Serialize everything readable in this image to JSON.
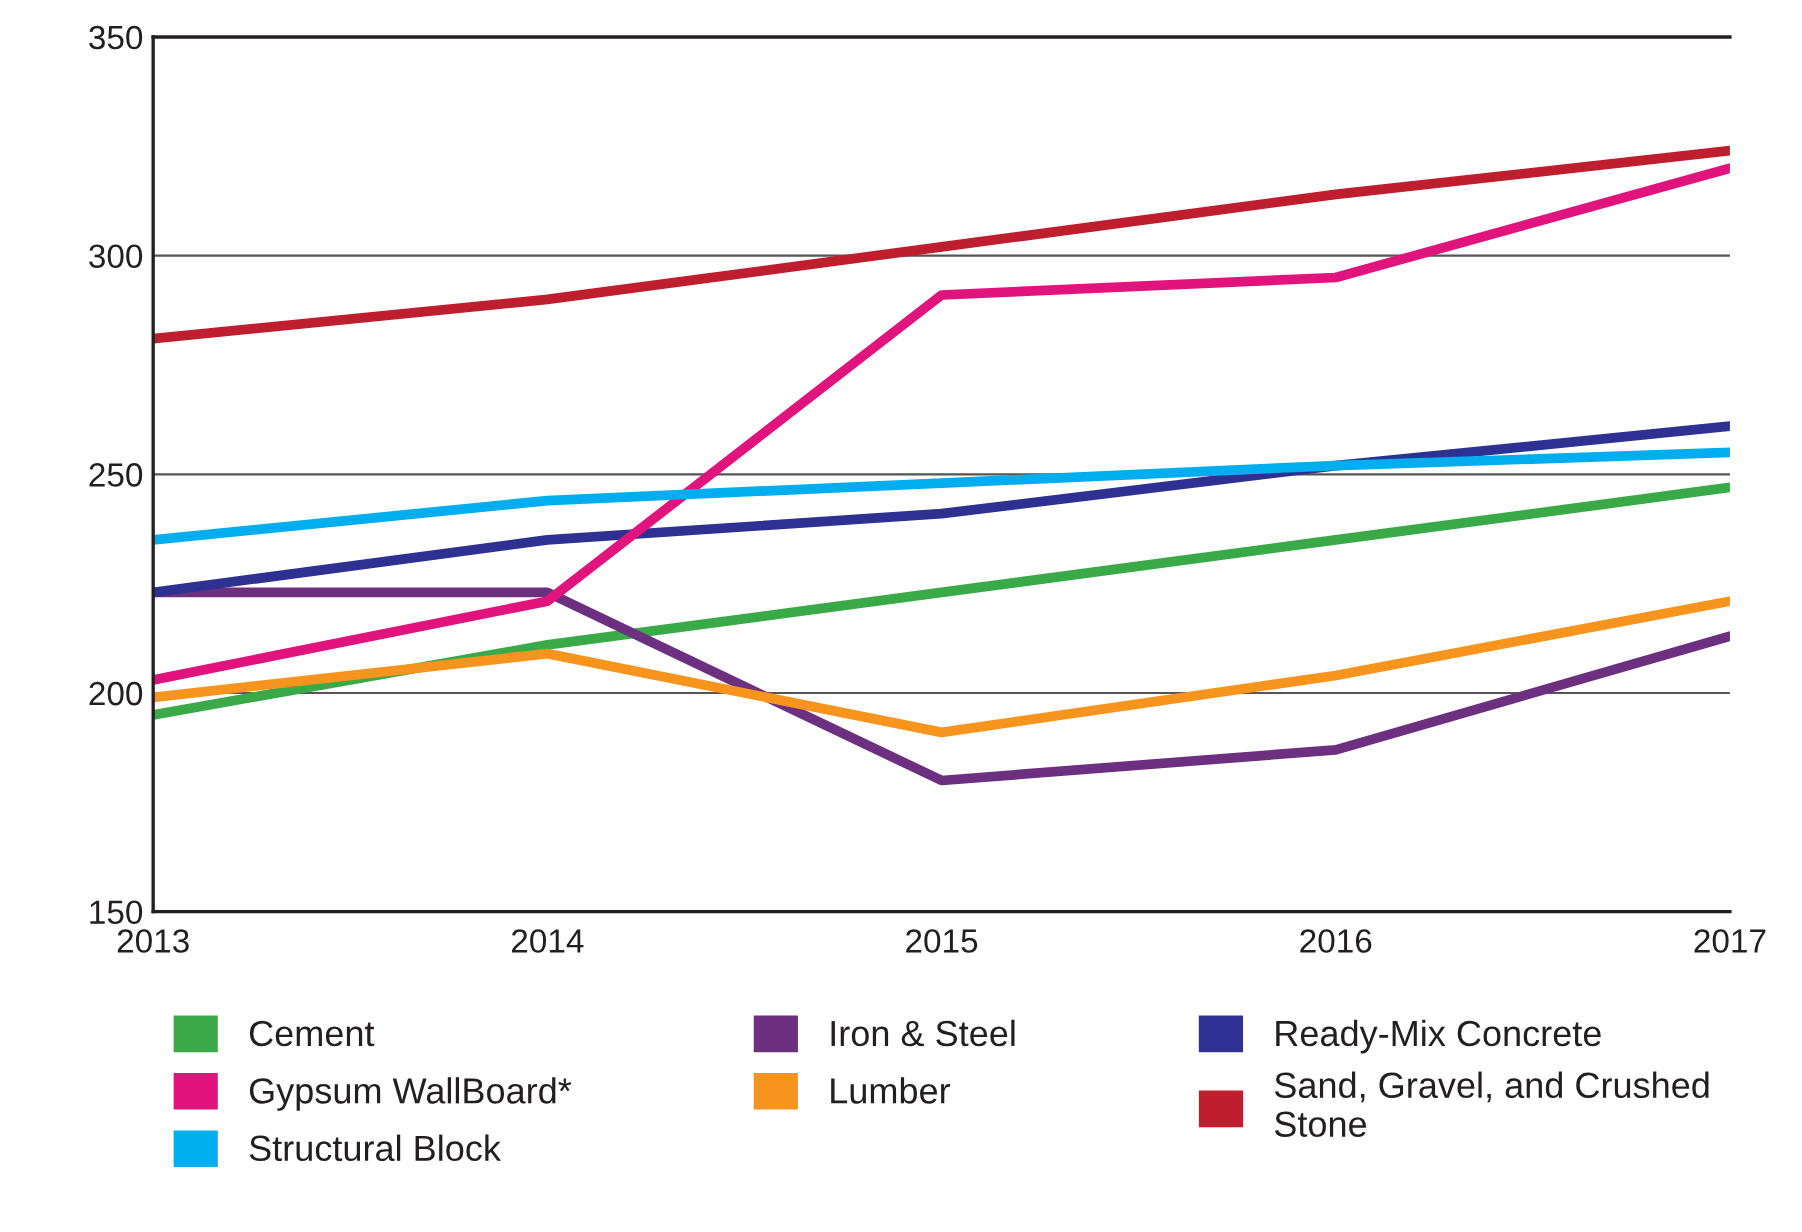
{
  "chart_data": {
    "type": "line",
    "x": [
      2013,
      2014,
      2015,
      2016,
      2017
    ],
    "xlim": [
      2013,
      2017
    ],
    "xticks": [
      2013,
      2014,
      2015,
      2016,
      2017
    ],
    "ylim": [
      150,
      350
    ],
    "yticks": [
      150,
      200,
      250,
      300,
      350
    ],
    "grid": "y",
    "legend": "bottom",
    "marker": "none",
    "line_style": "solid",
    "series": [
      {
        "name": "Cement",
        "color": "#3aaa48",
        "values": [
          195,
          211,
          223,
          235,
          247
        ]
      },
      {
        "name": "Iron & Steel",
        "color": "#6d2f7f",
        "values": [
          223,
          223,
          180,
          187,
          213
        ]
      },
      {
        "name": "Ready-Mix Concrete",
        "color": "#2e3192",
        "values": [
          223,
          235,
          241,
          252,
          261
        ]
      },
      {
        "name": "Gypsum WallBoard*",
        "color": "#e0147c",
        "values": [
          203,
          221,
          291,
          295,
          320
        ]
      },
      {
        "name": "Lumber",
        "color": "#f7941d",
        "values": [
          199,
          209,
          191,
          204,
          221
        ]
      },
      {
        "name": "Sand, Gravel, and Crushed\nStone",
        "color": "#be1e2d",
        "values": [
          281,
          290,
          302,
          314,
          324
        ]
      },
      {
        "name": "Structural Block",
        "color": "#00aeef",
        "values": [
          235,
          244,
          248,
          252,
          255
        ]
      }
    ]
  }
}
